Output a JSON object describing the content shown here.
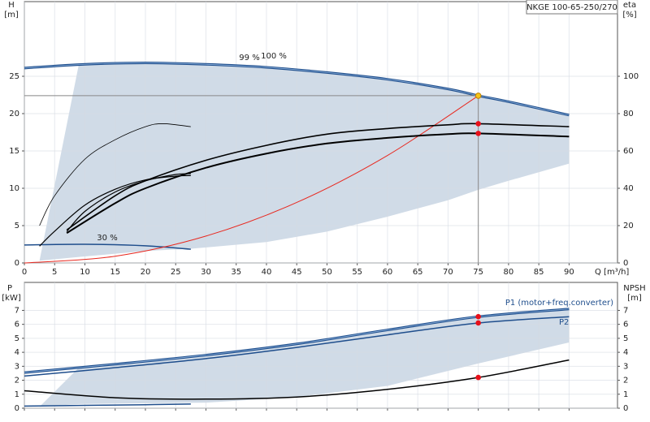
{
  "model_label": "NKGE 100-65-250/270",
  "chart_data": [
    {
      "type": "line",
      "y_title": "H",
      "y_unit": "[m]",
      "y2_title": "eta",
      "y2_unit": "[%]",
      "x_label": "Q [m³/h]",
      "xlim": [
        0,
        98
      ],
      "xticks": [
        0,
        5,
        10,
        15,
        20,
        25,
        30,
        35,
        40,
        45,
        50,
        55,
        60,
        65,
        70,
        75,
        80,
        85,
        90
      ],
      "xtick_labels": true,
      "ylim": [
        0,
        35
      ],
      "yticks": [
        0,
        5,
        10,
        15,
        20,
        25
      ],
      "y2lim": [
        0,
        140
      ],
      "y2ticks": [
        0,
        20,
        40,
        60,
        80,
        100
      ],
      "grid": true,
      "band": {
        "color": "#cbd7e4",
        "x": [
          2.5,
          9,
          20,
          27.5,
          40,
          50,
          60,
          70,
          75,
          80,
          90
        ],
        "upper": [
          0.3,
          26.6,
          26.8,
          26.7,
          26.2,
          25.5,
          24.6,
          23.3,
          22.4,
          21.6,
          19.8
        ],
        "lower": [
          0.3,
          0.8,
          1.6,
          1.9,
          2.8,
          4.2,
          6.2,
          8.4,
          9.8,
          11.0,
          13.3
        ]
      },
      "series": [
        {
          "color": "#1f4e8c",
          "width": 3,
          "x": [
            0,
            10,
            20,
            30,
            40,
            50,
            60,
            70,
            75,
            80,
            90
          ],
          "values": [
            26.1,
            26.6,
            26.8,
            26.6,
            26.2,
            25.5,
            24.6,
            23.3,
            22.4,
            21.6,
            19.8
          ]
        },
        {
          "color": "#1f4e8c",
          "width": 1.5,
          "x": [
            0,
            10,
            20,
            27.5
          ],
          "values": [
            2.4,
            2.5,
            2.3,
            1.84
          ]
        },
        {
          "color": "#e8281f",
          "width": 1,
          "x": [
            0,
            15,
            30,
            45,
            60,
            75
          ],
          "values": [
            0,
            0.9,
            3.6,
            8.1,
            14.4,
            22.4
          ]
        },
        {
          "color": "#000000",
          "width": 0.8,
          "axis": "y2",
          "x": [
            2.5,
            5,
            10,
            15,
            20,
            23,
            27.5
          ],
          "values": [
            20,
            36,
            55.6,
            66,
            73,
            74.6,
            73
          ]
        },
        {
          "color": "#000000",
          "width": 1.2,
          "axis": "y2",
          "x": [
            7,
            10,
            15,
            20,
            25,
            27.5
          ],
          "values": [
            16.8,
            27.6,
            38,
            44,
            47.4,
            47.8
          ]
        },
        {
          "color": "#000000",
          "width": 1.2,
          "axis": "y2",
          "x": [
            2.5,
            5,
            10,
            15,
            20,
            25,
            27.5
          ],
          "values": [
            9,
            17,
            31,
            39.5,
            44.5,
            46.5,
            46.8
          ]
        },
        {
          "color": "#000000",
          "width": 1.6,
          "axis": "y2",
          "x": [
            7,
            15,
            20,
            30,
            40,
            50,
            60,
            70,
            75,
            90
          ],
          "values": [
            17.7,
            36,
            44,
            55,
            63,
            69,
            72,
            74,
            74.6,
            73
          ]
        },
        {
          "color": "#000000",
          "width": 2,
          "axis": "y2",
          "x": [
            7,
            15,
            20,
            30,
            40,
            50,
            60,
            70,
            75,
            90
          ],
          "values": [
            16,
            32,
            40,
            51,
            58.6,
            64,
            67,
            69,
            69.4,
            67.7
          ]
        }
      ],
      "points": [
        {
          "x": 75,
          "value": 22.4,
          "color": "#f5c518",
          "guides": true
        },
        {
          "x": 75,
          "value": 74.6,
          "color": "#e8101a",
          "axis": "y2"
        },
        {
          "x": 75,
          "value": 69.4,
          "color": "#e8101a",
          "axis": "y2"
        }
      ],
      "annotations": [
        "99 %",
        "100 %",
        "30 %"
      ]
    },
    {
      "type": "line",
      "y_title": "P",
      "y_unit": "[kW]",
      "y2_title": "NPSH",
      "y2_unit": "[m]",
      "xlim": [
        0,
        98
      ],
      "xticks": [
        0,
        5,
        10,
        15,
        20,
        25,
        30,
        35,
        40,
        45,
        50,
        55,
        60,
        65,
        70,
        75,
        80,
        85,
        90
      ],
      "xtick_labels": false,
      "ylim": [
        0,
        9
      ],
      "yticks": [
        0,
        1,
        2,
        3,
        4,
        5,
        6,
        7
      ],
      "y2lim": [
        0,
        9
      ],
      "y2ticks": [
        0,
        1,
        2,
        3,
        4,
        5,
        6,
        7
      ],
      "grid": true,
      "band": {
        "color": "#cbd7e4",
        "x": [
          2.5,
          9,
          30,
          45,
          60,
          75,
          90
        ],
        "upper": [
          0.1,
          2.9,
          3.8,
          4.6,
          5.6,
          6.55,
          7.1
        ],
        "lower": [
          0.1,
          0.3,
          0.4,
          0.8,
          1.6,
          3.2,
          4.7
        ]
      },
      "series": [
        {
          "name": "P1 (motor+freq.converter)",
          "color": "#1f4e8c",
          "width": 3,
          "x": [
            0,
            15,
            30,
            45,
            60,
            75,
            90
          ],
          "values": [
            2.55,
            3.15,
            3.8,
            4.6,
            5.6,
            6.55,
            7.1
          ]
        },
        {
          "name": "P2",
          "color": "#1f4e8c",
          "width": 1.5,
          "x": [
            0,
            15,
            30,
            45,
            60,
            75,
            90
          ],
          "values": [
            2.3,
            2.9,
            3.55,
            4.35,
            5.25,
            6.1,
            6.55
          ]
        },
        {
          "color": "#1f4e8c",
          "width": 1.5,
          "x": [
            0,
            10,
            20,
            27.5
          ],
          "values": [
            0.15,
            0.2,
            0.25,
            0.3
          ]
        },
        {
          "color": "#000000",
          "width": 1.5,
          "axis": "y2",
          "x": [
            0,
            15,
            30,
            45,
            60,
            75,
            90
          ],
          "values": [
            1.25,
            0.75,
            0.65,
            0.8,
            1.35,
            2.2,
            3.45
          ]
        }
      ],
      "points": [
        {
          "x": 75,
          "value": 6.55,
          "color": "#e8101a"
        },
        {
          "x": 75,
          "value": 6.1,
          "color": "#e8101a"
        },
        {
          "x": 75,
          "value": 2.2,
          "color": "#e8101a",
          "axis": "y2"
        }
      ],
      "annotations": []
    }
  ]
}
